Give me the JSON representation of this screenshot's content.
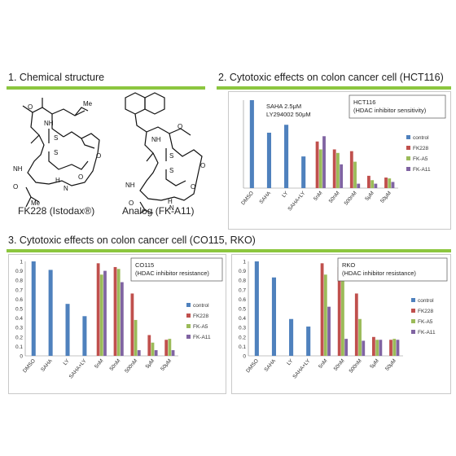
{
  "sections": {
    "s1": "1. Chemical structure",
    "s2": "2. Cytotoxic effects on colon cancer cell (HCT116)",
    "s3": "3. Cytotoxic effects on colon cancer cell (CO115, RKO)"
  },
  "molecules": {
    "left_label": "FK228 (Istodax®)",
    "right_label": "Analog (FK-A11)"
  },
  "colors": {
    "control": "#4f81bd",
    "FK228": "#c0504d",
    "FK-A5": "#9bbb59",
    "FK-A11": "#8064a2",
    "green_rule": "#8cc63f"
  },
  "chart_data": [
    {
      "id": "hct116",
      "type": "bar",
      "title": "",
      "annotation_box": [
        "HCT116",
        "(HDAC inhibitor sensitivity)"
      ],
      "inset_text": [
        "SAHA   2.5μM",
        "LY294002 50μM"
      ],
      "categories": [
        "DMSO",
        "SAHA",
        "LY",
        "SAHA+LY",
        "5nM",
        "50nM",
        "500nM",
        "5μM",
        "50μM"
      ],
      "ylim": [
        0,
        1
      ],
      "yticks": [],
      "series": [
        {
          "name": "control",
          "values": [
            1.0,
            0.63,
            0.72,
            0.36,
            null,
            null,
            null,
            null,
            null
          ]
        },
        {
          "name": "FK228",
          "values": [
            null,
            null,
            null,
            null,
            0.53,
            0.44,
            0.42,
            0.14,
            0.12
          ]
        },
        {
          "name": "FK-A5",
          "values": [
            null,
            null,
            null,
            null,
            0.44,
            0.4,
            0.3,
            0.09,
            0.11
          ]
        },
        {
          "name": "FK-A11",
          "values": [
            null,
            null,
            null,
            null,
            0.59,
            0.27,
            0.05,
            0.05,
            0.07
          ]
        }
      ],
      "legend": "right"
    },
    {
      "id": "co115",
      "type": "bar",
      "title": "",
      "annotation_box": [
        "CO115",
        "(HDAC inhibitor resistance)"
      ],
      "inset_text": [],
      "categories": [
        "DMSO",
        "SAHA",
        "LY",
        "SAHA+LY",
        "5nM",
        "50nM",
        "500nM",
        "5μM",
        "50μM"
      ],
      "ylim": [
        0,
        1
      ],
      "yticks": [
        "0",
        "0.1",
        "0.2",
        "0.3",
        "0.4",
        "0.5",
        "0.6",
        "0.7",
        "0.8",
        "0.9",
        "1"
      ],
      "series": [
        {
          "name": "control",
          "values": [
            1.0,
            0.91,
            0.55,
            0.42,
            null,
            null,
            null,
            null,
            null
          ]
        },
        {
          "name": "FK228",
          "values": [
            null,
            null,
            null,
            null,
            0.98,
            0.94,
            0.66,
            0.22,
            0.17
          ]
        },
        {
          "name": "FK-A5",
          "values": [
            null,
            null,
            null,
            null,
            0.86,
            0.92,
            0.38,
            0.14,
            0.18
          ]
        },
        {
          "name": "FK-A11",
          "values": [
            null,
            null,
            null,
            null,
            0.9,
            0.78,
            0.06,
            0.06,
            0.06
          ]
        }
      ],
      "legend": "right"
    },
    {
      "id": "rko",
      "type": "bar",
      "title": "",
      "annotation_box": [
        "RKO",
        "(HDAC inhibitor resistance)"
      ],
      "inset_text": [],
      "categories": [
        "DMSO",
        "SAHA",
        "LY",
        "SAHA+LY",
        "5nM",
        "50nM",
        "500nM",
        "5μM",
        "50μM"
      ],
      "ylim": [
        0,
        1
      ],
      "yticks": [
        "0",
        "0.1",
        "0.2",
        "0.3",
        "0.4",
        "0.5",
        "0.6",
        "0.7",
        "0.8",
        "0.9",
        "1"
      ],
      "series": [
        {
          "name": "control",
          "values": [
            1.0,
            0.83,
            0.39,
            0.31,
            null,
            null,
            null,
            null,
            null
          ]
        },
        {
          "name": "FK228",
          "values": [
            null,
            null,
            null,
            null,
            0.98,
            0.94,
            0.66,
            0.2,
            0.17
          ]
        },
        {
          "name": "FK-A5",
          "values": [
            null,
            null,
            null,
            null,
            0.86,
            0.92,
            0.39,
            0.17,
            0.18
          ]
        },
        {
          "name": "FK-A11",
          "values": [
            null,
            null,
            null,
            null,
            0.52,
            0.18,
            0.16,
            0.17,
            0.17
          ]
        }
      ],
      "legend": "right"
    }
  ]
}
